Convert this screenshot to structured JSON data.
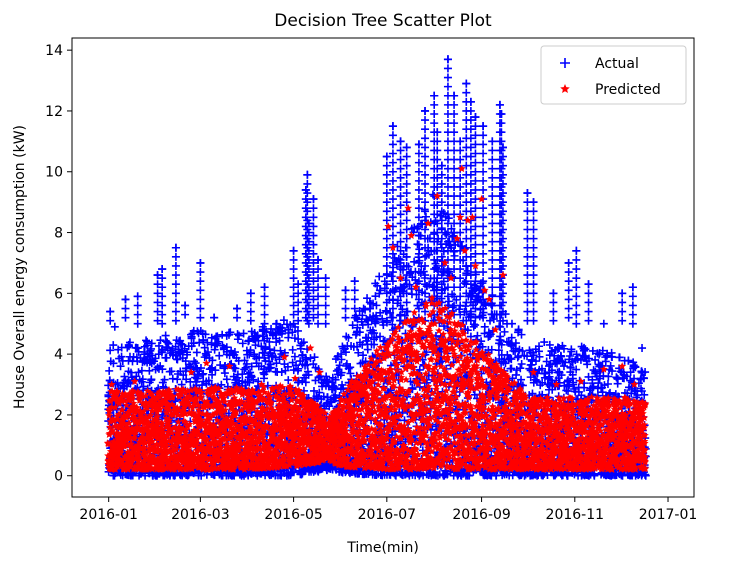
{
  "chart_data": {
    "type": "scatter",
    "title": "Decision Tree Scatter Plot",
    "xlabel": "Time(min)",
    "ylabel": "House Overall energy consumption (kW)",
    "xlim": [
      "2015-12-08",
      "2017-01-18"
    ],
    "ylim": [
      -0.7,
      14.4
    ],
    "x_ticks": [
      "2016-01",
      "2016-03",
      "2016-05",
      "2016-07",
      "2016-09",
      "2016-11",
      "2017-01"
    ],
    "y_ticks": [
      0,
      2,
      4,
      6,
      8,
      10,
      12,
      14
    ],
    "grid": false,
    "legend_position": "top-right",
    "series": [
      {
        "name": "Actual",
        "marker": "+",
        "color": "#0000ff",
        "points": [
          [
            "2016-01-02",
            5.4
          ],
          [
            "2016-01-05",
            4.9
          ],
          [
            "2016-01-12",
            5.8
          ],
          [
            "2016-01-20",
            5.9
          ],
          [
            "2016-02-02",
            6.6
          ],
          [
            "2016-02-05",
            6.8
          ],
          [
            "2016-02-14",
            7.5
          ],
          [
            "2016-02-20",
            5.6
          ],
          [
            "2016-03-01",
            7.0
          ],
          [
            "2016-03-10",
            5.2
          ],
          [
            "2016-03-25",
            5.5
          ],
          [
            "2016-04-03",
            6.0
          ],
          [
            "2016-04-12",
            6.2
          ],
          [
            "2016-04-20",
            5.0
          ],
          [
            "2016-05-01",
            7.4
          ],
          [
            "2016-05-04",
            6.3
          ],
          [
            "2016-05-09",
            9.4
          ],
          [
            "2016-05-10",
            9.9
          ],
          [
            "2016-05-11",
            8.3
          ],
          [
            "2016-05-14",
            9.1
          ],
          [
            "2016-05-17",
            7.1
          ],
          [
            "2016-05-22",
            6.5
          ],
          [
            "2016-06-04",
            6.1
          ],
          [
            "2016-06-10",
            6.4
          ],
          [
            "2016-06-20",
            5.5
          ],
          [
            "2016-07-01",
            10.5
          ],
          [
            "2016-07-05",
            11.5
          ],
          [
            "2016-07-10",
            11.0
          ],
          [
            "2016-07-14",
            10.8
          ],
          [
            "2016-07-22",
            10.9
          ],
          [
            "2016-07-26",
            12.0
          ],
          [
            "2016-08-01",
            12.5
          ],
          [
            "2016-08-03",
            11.3
          ],
          [
            "2016-08-06",
            10.2
          ],
          [
            "2016-08-10",
            13.7
          ],
          [
            "2016-08-14",
            12.5
          ],
          [
            "2016-08-18",
            11.0
          ],
          [
            "2016-08-22",
            12.9
          ],
          [
            "2016-08-25",
            12.3
          ],
          [
            "2016-08-28",
            11.8
          ],
          [
            "2016-09-02",
            11.5
          ],
          [
            "2016-09-08",
            11.0
          ],
          [
            "2016-09-13",
            12.2
          ],
          [
            "2016-09-14",
            11.9
          ],
          [
            "2016-09-15",
            10.8
          ],
          [
            "2016-10-01",
            9.3
          ],
          [
            "2016-10-05",
            9.0
          ],
          [
            "2016-10-18",
            6.0
          ],
          [
            "2016-10-28",
            7.0
          ],
          [
            "2016-11-02",
            7.4
          ],
          [
            "2016-11-10",
            6.3
          ],
          [
            "2016-11-20",
            5.0
          ],
          [
            "2016-12-02",
            6.0
          ],
          [
            "2016-12-09",
            6.2
          ],
          [
            "2016-12-15",
            4.2
          ]
        ]
      },
      {
        "name": "Predicted",
        "marker": "*",
        "color": "#ff0000",
        "points": [
          [
            "2016-01-03",
            3.0
          ],
          [
            "2016-01-18",
            3.1
          ],
          [
            "2016-02-24",
            3.4
          ],
          [
            "2016-03-05",
            3.7
          ],
          [
            "2016-03-20",
            3.6
          ],
          [
            "2016-04-10",
            3.0
          ],
          [
            "2016-04-25",
            3.9
          ],
          [
            "2016-05-02",
            3.2
          ],
          [
            "2016-05-12",
            4.2
          ],
          [
            "2016-05-18",
            3.4
          ],
          [
            "2016-06-08",
            3.1
          ],
          [
            "2016-06-25",
            3.2
          ],
          [
            "2016-07-02",
            8.2
          ],
          [
            "2016-07-05",
            7.5
          ],
          [
            "2016-07-10",
            6.5
          ],
          [
            "2016-07-15",
            8.8
          ],
          [
            "2016-07-17",
            7.9
          ],
          [
            "2016-07-20",
            6.2
          ],
          [
            "2016-07-28",
            8.3
          ],
          [
            "2016-08-03",
            9.2
          ],
          [
            "2016-08-08",
            7.0
          ],
          [
            "2016-08-12",
            6.5
          ],
          [
            "2016-08-16",
            7.8
          ],
          [
            "2016-08-18",
            8.5
          ],
          [
            "2016-08-19",
            10.1
          ],
          [
            "2016-08-21",
            7.4
          ],
          [
            "2016-08-23",
            8.4
          ],
          [
            "2016-08-26",
            8.5
          ],
          [
            "2016-08-28",
            6.9
          ],
          [
            "2016-09-01",
            9.1
          ],
          [
            "2016-09-03",
            6.1
          ],
          [
            "2016-09-06",
            5.8
          ],
          [
            "2016-09-10",
            4.8
          ],
          [
            "2016-09-15",
            6.6
          ],
          [
            "2016-10-05",
            3.4
          ],
          [
            "2016-10-20",
            3.0
          ],
          [
            "2016-11-05",
            3.1
          ],
          [
            "2016-11-20",
            3.5
          ],
          [
            "2016-12-02",
            3.6
          ],
          [
            "2016-12-10",
            3.0
          ]
        ]
      }
    ],
    "dense_bands": {
      "note": "background cloud of many daily points",
      "actual_band_by_month": [
        [
          "2016-01-01",
          0.0,
          4.3
        ],
        [
          "2016-02-01",
          0.0,
          4.6
        ],
        [
          "2016-03-01",
          0.0,
          4.8
        ],
        [
          "2016-04-01",
          0.0,
          4.8
        ],
        [
          "2016-05-01",
          0.0,
          5.2
        ],
        [
          "2016-05-25",
          0.2,
          3.0
        ],
        [
          "2016-06-01",
          0.1,
          4.5
        ],
        [
          "2016-07-01",
          0.0,
          7.0
        ],
        [
          "2016-08-01",
          0.0,
          9.5
        ],
        [
          "2016-09-01",
          0.0,
          6.5
        ],
        [
          "2016-10-01",
          0.0,
          4.5
        ],
        [
          "2016-11-01",
          0.0,
          4.3
        ],
        [
          "2016-12-01",
          0.0,
          4.0
        ],
        [
          "2016-12-17",
          0.0,
          3.5
        ]
      ],
      "predicted_band_by_month": [
        [
          "2016-01-01",
          0.2,
          2.8
        ],
        [
          "2016-02-01",
          0.2,
          2.8
        ],
        [
          "2016-03-01",
          0.2,
          2.9
        ],
        [
          "2016-04-01",
          0.2,
          2.9
        ],
        [
          "2016-05-01",
          0.3,
          3.0
        ],
        [
          "2016-05-25",
          0.5,
          1.9
        ],
        [
          "2016-06-01",
          0.3,
          2.6
        ],
        [
          "2016-07-01",
          0.2,
          4.5
        ],
        [
          "2016-08-01",
          0.2,
          6.0
        ],
        [
          "2016-09-01",
          0.2,
          4.2
        ],
        [
          "2016-10-01",
          0.2,
          2.6
        ],
        [
          "2016-11-01",
          0.2,
          2.6
        ],
        [
          "2016-12-01",
          0.2,
          2.6
        ],
        [
          "2016-12-17",
          0.2,
          2.4
        ]
      ]
    }
  }
}
